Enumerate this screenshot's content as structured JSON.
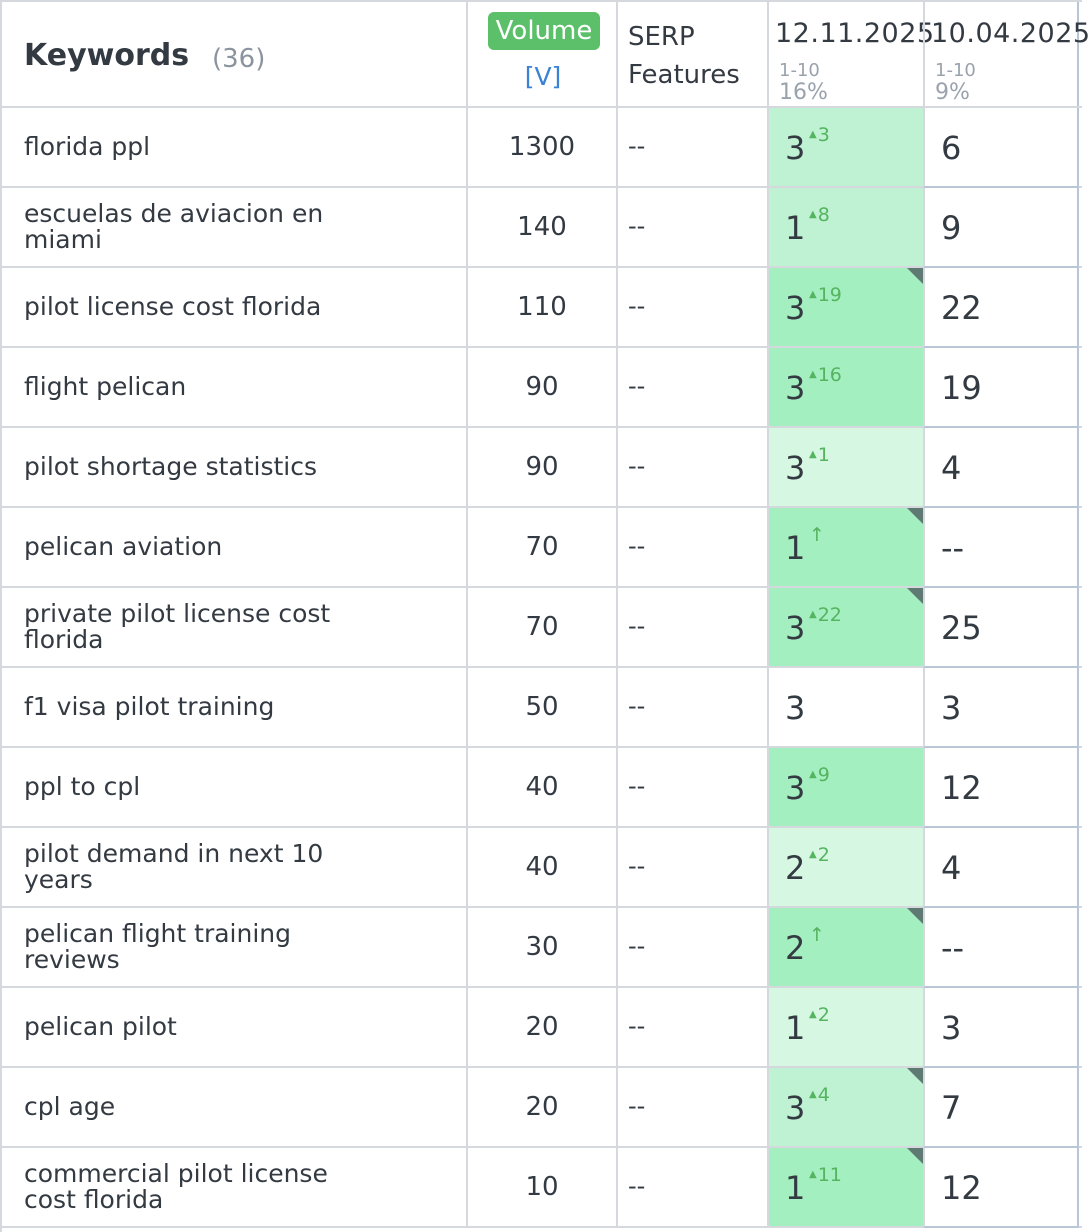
{
  "header": {
    "keywords_title": "Keywords",
    "keywords_count": "(36)",
    "volume_label": "Volume",
    "volume_link": "[V]",
    "serp_line1": "SERP",
    "serp_line2": "Features",
    "date1": {
      "label": "12.11.2025",
      "range": "1-10",
      "pct": "16%"
    },
    "date2": {
      "label": "10.04.2025",
      "range": "1-10",
      "pct": "9%"
    }
  },
  "colors": {
    "light": "#d6f7e2",
    "mid": "#bff2d2",
    "strong": "#a4efc0",
    "white": "#ffffff"
  },
  "rows": [
    {
      "keyword": "florida ppl",
      "volume": "1300",
      "serp": "--",
      "pos1": "3",
      "change": "3",
      "up": "tri",
      "shade": "mid",
      "corner": false,
      "pos2": "6"
    },
    {
      "keyword": "escuelas de aviacion en miami",
      "volume": "140",
      "serp": "--",
      "pos1": "1",
      "change": "8",
      "up": "tri",
      "shade": "mid",
      "corner": false,
      "pos2": "9"
    },
    {
      "keyword": "pilot license cost florida",
      "volume": "110",
      "serp": "--",
      "pos1": "3",
      "change": "19",
      "up": "tri",
      "shade": "strong",
      "corner": true,
      "pos2": "22"
    },
    {
      "keyword": "flight pelican",
      "volume": "90",
      "serp": "--",
      "pos1": "3",
      "change": "16",
      "up": "tri",
      "shade": "strong",
      "corner": false,
      "pos2": "19"
    },
    {
      "keyword": "pilot shortage statistics",
      "volume": "90",
      "serp": "--",
      "pos1": "3",
      "change": "1",
      "up": "tri",
      "shade": "light",
      "corner": false,
      "pos2": "4"
    },
    {
      "keyword": "pelican aviation",
      "volume": "70",
      "serp": "--",
      "pos1": "1",
      "change": "↑",
      "up": "arrow",
      "shade": "strong",
      "corner": true,
      "pos2": "--"
    },
    {
      "keyword": "private pilot license cost florida",
      "volume": "70",
      "serp": "--",
      "pos1": "3",
      "change": "22",
      "up": "tri",
      "shade": "strong",
      "corner": true,
      "pos2": "25"
    },
    {
      "keyword": "f1 visa pilot training",
      "volume": "50",
      "serp": "--",
      "pos1": "3",
      "change": "",
      "up": "none",
      "shade": "white",
      "corner": false,
      "pos2": "3"
    },
    {
      "keyword": "ppl to cpl",
      "volume": "40",
      "serp": "--",
      "pos1": "3",
      "change": "9",
      "up": "tri",
      "shade": "strong",
      "corner": false,
      "pos2": "12"
    },
    {
      "keyword": "pilot demand in next 10 years",
      "volume": "40",
      "serp": "--",
      "pos1": "2",
      "change": "2",
      "up": "tri",
      "shade": "light",
      "corner": false,
      "pos2": "4"
    },
    {
      "keyword": "pelican flight training reviews",
      "volume": "30",
      "serp": "--",
      "pos1": "2",
      "change": "↑",
      "up": "arrow",
      "shade": "strong",
      "corner": true,
      "pos2": "--"
    },
    {
      "keyword": "pelican pilot",
      "volume": "20",
      "serp": "--",
      "pos1": "1",
      "change": "2",
      "up": "tri",
      "shade": "light",
      "corner": false,
      "pos2": "3"
    },
    {
      "keyword": "cpl age",
      "volume": "20",
      "serp": "--",
      "pos1": "3",
      "change": "4",
      "up": "tri",
      "shade": "mid",
      "corner": true,
      "pos2": "7"
    },
    {
      "keyword": "commercial pilot license cost florida",
      "volume": "10",
      "serp": "--",
      "pos1": "1",
      "change": "11",
      "up": "tri",
      "shade": "strong",
      "corner": true,
      "pos2": "12"
    }
  ]
}
